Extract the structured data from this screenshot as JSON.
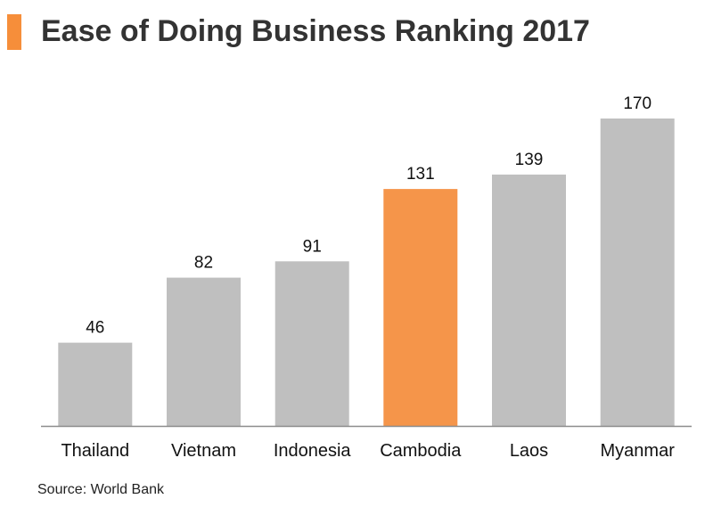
{
  "colors": {
    "accent": "#F68E3A",
    "bar": "#BFBFBF",
    "highlight": "#F5954A",
    "axis": "#8C8C8C",
    "title": "#333333"
  },
  "title": "Ease of Doing Business Ranking 2017",
  "source": "Source: World Bank",
  "chart_data": {
    "type": "bar",
    "title": "Ease of Doing Business Ranking 2017",
    "xlabel": "",
    "ylabel": "",
    "categories": [
      "Thailand",
      "Vietnam",
      "Indonesia",
      "Cambodia",
      "Laos",
      "Myanmar"
    ],
    "values": [
      46,
      82,
      91,
      131,
      139,
      170
    ],
    "highlighted_category": "Cambodia",
    "ylim": [
      0,
      170
    ],
    "grid": false,
    "data_labels": true,
    "legend": "none"
  }
}
